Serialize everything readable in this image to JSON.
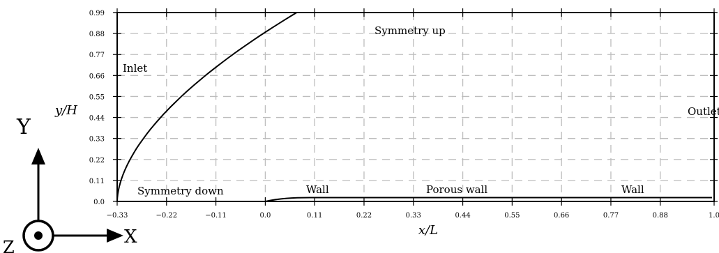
{
  "axes": {
    "xlabel": "x/L",
    "ylabel": "y/H",
    "x_ticks": [
      "−0.33",
      "−0.22",
      "−0.11",
      "0.0",
      "0.11",
      "0.22",
      "0.33",
      "0.44",
      "0.55",
      "0.66",
      "0.77",
      "0.88",
      "1.0"
    ],
    "y_ticks": [
      "0.0",
      "0.11",
      "0.22",
      "0.33",
      "0.44",
      "0.55",
      "0.66",
      "0.77",
      "0.88",
      "0.99"
    ],
    "xlim": [
      -0.33,
      1.0
    ],
    "ylim": [
      0.0,
      0.99
    ],
    "grid": "dashed"
  },
  "boundaries": {
    "inlet": "Inlet",
    "outlet": "Outlet",
    "symmetry_up": "Symmetry  up",
    "symmetry_down": "Symmetry  down",
    "wall_left": "Wall",
    "porous_wall": "Porous wall",
    "wall_right": "Wall"
  },
  "coordinate_triad": {
    "x": "X",
    "y": "Y",
    "z": "Z"
  }
}
